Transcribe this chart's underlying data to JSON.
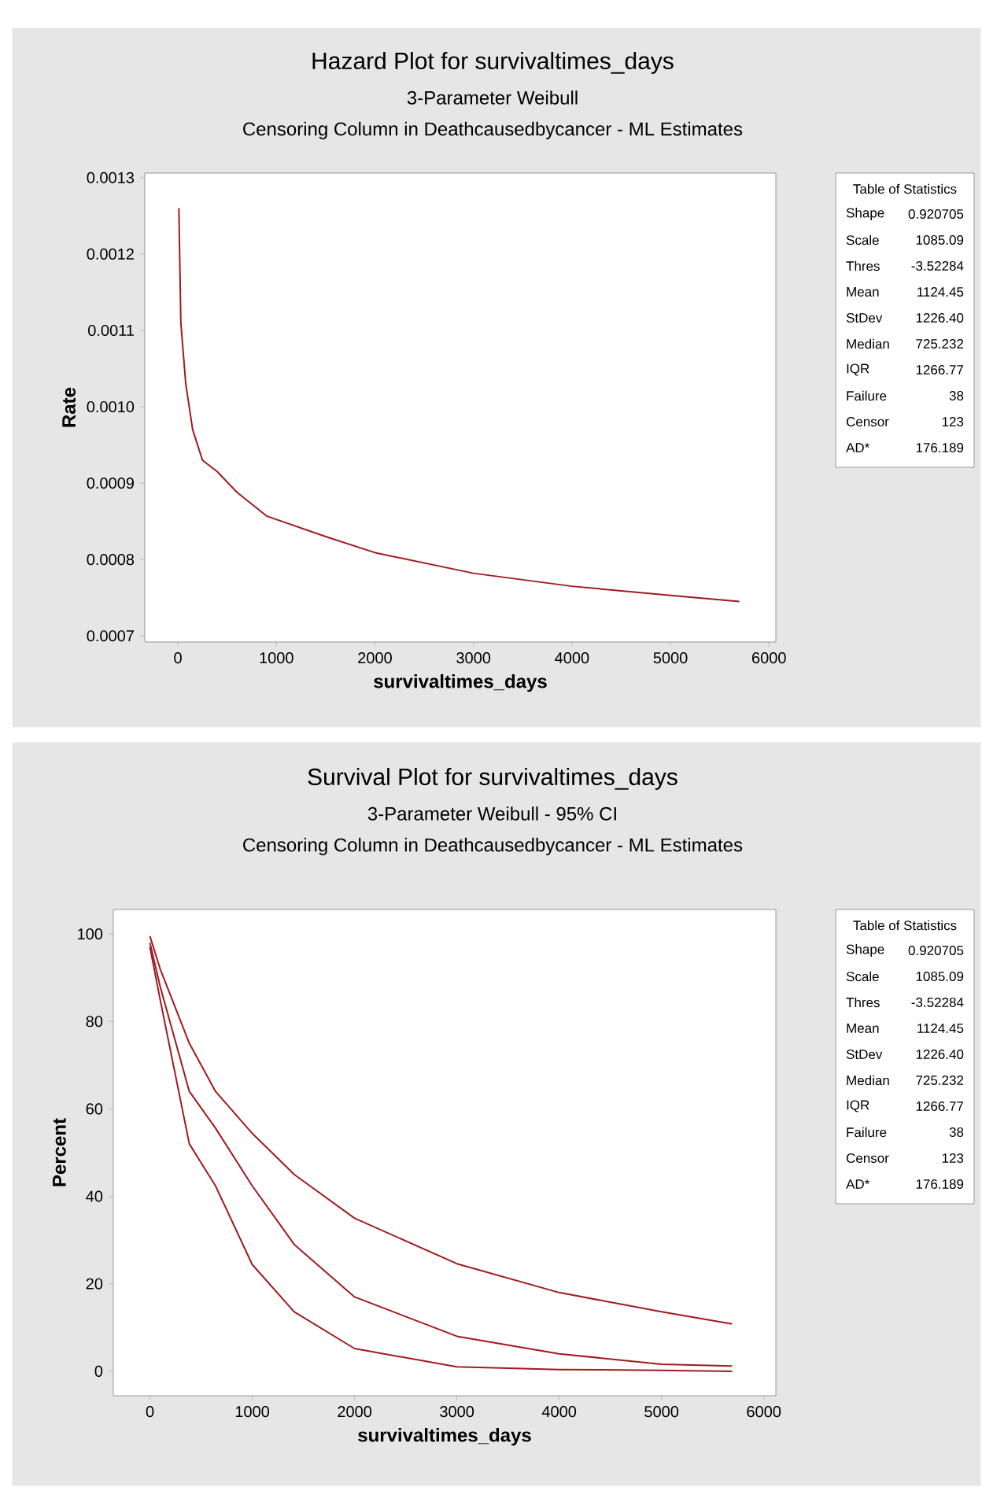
{
  "chart_data": [
    {
      "type": "line",
      "title": "Hazard Plot for survivaltimes_days",
      "subtitle": "3-Parameter Weibull",
      "xlabel": "survivaltimes_days",
      "ylabel": "Rate",
      "xlim": [
        -336,
        6070
      ],
      "ylim": [
        0.000692,
        0.001306
      ],
      "xticks": [
        0,
        1000,
        2000,
        3000,
        4000,
        5000,
        6000
      ],
      "yticks": [
        0.0007,
        0.0008,
        0.0009,
        {
          "value": 0.001,
          "label": "0.0010"
        },
        0.0011,
        0.0012,
        0.0013
      ],
      "series": [
        {
          "color": "#a01a1e",
          "x": [
            10,
            30,
            80,
            150,
            250,
            400,
            600,
            900,
            1500,
            2000,
            3000,
            4000,
            5000,
            5700
          ],
          "values": [
            0.00126,
            0.00111,
            0.00103,
            0.00097,
            0.00093,
            0.000915,
            0.000888,
            0.000857,
            0.00083,
            0.000809,
            0.000782,
            0.000765,
            0.000753,
            0.000745
          ]
        }
      ],
      "annotations": [
        "Censoring Column in Deathcausedbycancer - ML Estimates",
        "Table of Statistics",
        "Shape",
        "0.920705",
        "Scale",
        "1085.09",
        "Thres",
        "-3.52284",
        "Mean",
        "1124.45",
        "StDev",
        "1226.40",
        "Median",
        "725.232",
        "IQR",
        "1266.77",
        "Failure",
        "38",
        "Censor",
        "123",
        "AD*",
        "176.189"
      ]
    },
    {
      "type": "line",
      "title": "Survival Plot for survivaltimes_days",
      "subtitle": "3-Parameter Weibull - 95% CI",
      "xlabel": "survivaltimes_days",
      "ylabel": "Percent",
      "xlim": [
        -358,
        6118
      ],
      "ylim": [
        -5.6,
        105.6
      ],
      "xticks": [
        0,
        1000,
        2000,
        3000,
        4000,
        5000,
        6000
      ],
      "yticks": [
        0,
        20,
        40,
        60,
        80,
        100
      ],
      "series": [
        {
          "color": "#a01a1e",
          "x": [
            0,
            100,
            385,
            641,
            1000,
            1410,
            2000,
            3000,
            4000,
            5000,
            5690
          ],
          "values": [
            99.5,
            92,
            75,
            64,
            54.4,
            45,
            35,
            24.6,
            18,
            13.6,
            10.8
          ]
        },
        {
          "color": "#a01a1e",
          "x": [
            0,
            100,
            385,
            641,
            1000,
            1410,
            2000,
            3000,
            4000,
            5000,
            5690
          ],
          "values": [
            98,
            88,
            64,
            55.6,
            42.4,
            29,
            17,
            8,
            4,
            1.6,
            1.2
          ]
        },
        {
          "color": "#a01a1e",
          "x": [
            0,
            100,
            385,
            641,
            1000,
            1410,
            2000,
            3000,
            4000,
            5000,
            5690
          ],
          "values": [
            97,
            85,
            52,
            42.4,
            24.4,
            13.6,
            5.2,
            1,
            0.4,
            0.2,
            0
          ]
        }
      ],
      "annotations": [
        "Censoring Column in Deathcausedbycancer - ML Estimates",
        "Table of Statistics",
        "Shape",
        "0.920705",
        "Scale",
        "1085.09",
        "Thres",
        "-3.52284",
        "Mean",
        "1124.45",
        "StDev",
        "1226.40",
        "Median",
        "725.232",
        "IQR",
        "1266.77",
        "Failure",
        "38",
        "Censor",
        "123",
        "AD*",
        "176.189"
      ]
    }
  ]
}
